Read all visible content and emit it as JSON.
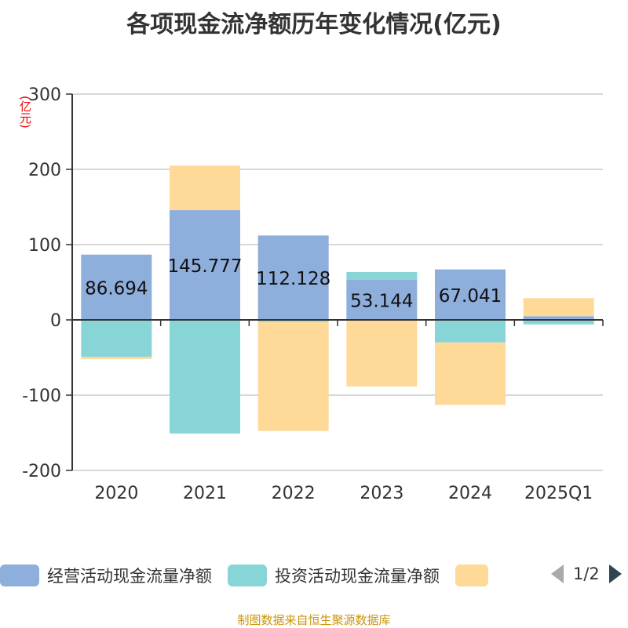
{
  "chart_data": {
    "type": "bar",
    "stacked": true,
    "title": "各项现金流净额历年变化情况(亿元)",
    "unit_label": "(亿元)",
    "categories": [
      "2020",
      "2021",
      "2022",
      "2023",
      "2024",
      "2025Q1"
    ],
    "ylim": [
      -200,
      300
    ],
    "yticks": [
      300,
      200,
      100,
      0,
      -100,
      -200
    ],
    "grid": true,
    "legend": "bottom",
    "series": [
      {
        "name": "经营活动现金流量净额",
        "color": "#8eaedb",
        "values": [
          86.694,
          145.777,
          112.128,
          53.144,
          67.041,
          4.9
        ],
        "labels": [
          "86.694",
          "145.777",
          "112.128",
          "53.144",
          "67.041",
          ""
        ]
      },
      {
        "name": "投资活动现金流量净额",
        "color": "#88d5d8",
        "values": [
          -49,
          -151,
          -2.5,
          10.4,
          -30,
          -6
        ]
      },
      {
        "name": "",
        "color": "#fed998",
        "values": [
          -3,
          59.2,
          -145,
          -88.5,
          -83,
          24
        ]
      }
    ]
  },
  "legend": {
    "page": "1/2"
  },
  "source": "制图数据来自恒生聚源数据库"
}
